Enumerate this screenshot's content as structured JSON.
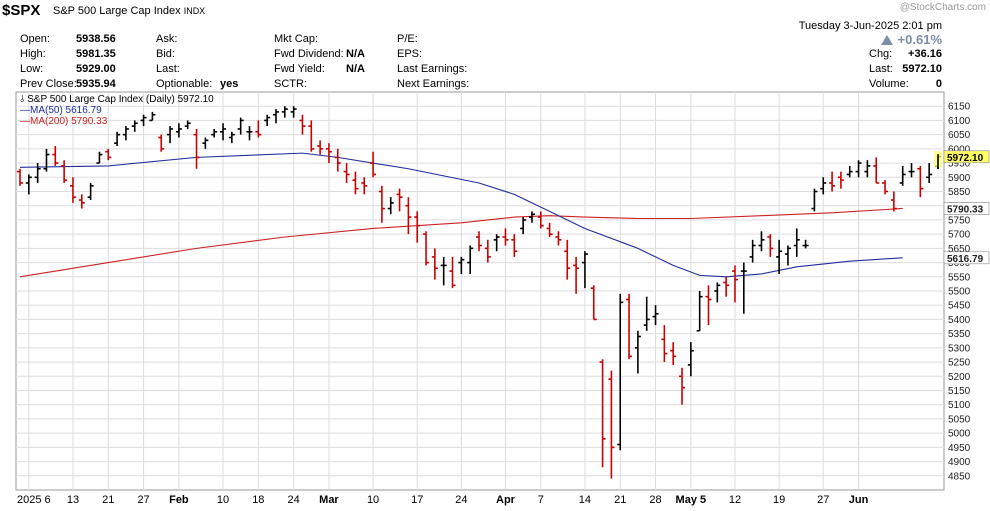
{
  "header": {
    "symbol": "$SPX",
    "name": "S&P 500 Large Cap Index",
    "exchange": "INDX",
    "watermark": "@StockCharts.com",
    "datetime": "Tuesday  3-Jun-2025  2:01 pm",
    "pct_change": "+0.61%"
  },
  "quote": {
    "open_label": "Open:",
    "open": "5938.56",
    "high_label": "High:",
    "high": "5981.35",
    "low_label": "Low:",
    "low": "5929.00",
    "prev_label": "Prev Close:",
    "prev": "5935.94",
    "ask_label": "Ask:",
    "bid_label": "Bid:",
    "last_label2": "Last:",
    "optionable_label": "Optionable:",
    "optionable": "yes",
    "mktcap_label": "Mkt Cap:",
    "fwddiv_label": "Fwd Dividend:",
    "fwddiv": "N/A",
    "fwdyield_label": "Fwd Yield:",
    "fwdyield": "N/A",
    "sctr_label": "SCTR:",
    "pe_label": "P/E:",
    "eps_label": "EPS:",
    "lastearn_label": "Last Earnings:",
    "nextearn_label": "Next Earnings:",
    "chg_label": "Chg:",
    "chg": "+36.16",
    "last_label": "Last:",
    "last": "5972.10",
    "volume_label": "Volume:",
    "volume": "0"
  },
  "legend": {
    "main": "S&P 500 Large Cap Index (Daily) 5972.10",
    "ma50": "MA(50) 5616.79",
    "ma200": "MA(200) 5790.33"
  },
  "colors": {
    "up": "#000000",
    "down": "#cc0000",
    "ma50": "#1f2f9e",
    "ma200": "#cc2222",
    "grid": "#dddddd",
    "last_tag": "#ffff66"
  },
  "chart_data": {
    "type": "ohlc",
    "title": "S&P 500 Large Cap Index (Daily)",
    "ylim": [
      4800,
      6200
    ],
    "y_ticks": [
      4850,
      4900,
      4950,
      5000,
      5050,
      5100,
      5150,
      5200,
      5250,
      5300,
      5350,
      5400,
      5450,
      5500,
      5550,
      5600,
      5650,
      5700,
      5750,
      5800,
      5850,
      5900,
      5950,
      6000,
      6050,
      6100,
      6150
    ],
    "x_ticks": [
      {
        "i": 1,
        "label": "2025 6",
        "bold": false
      },
      {
        "i": 6,
        "label": "13",
        "bold": false
      },
      {
        "i": 10,
        "label": "21",
        "bold": false
      },
      {
        "i": 14,
        "label": "27",
        "bold": false
      },
      {
        "i": 18,
        "label": "Feb",
        "bold": true
      },
      {
        "i": 23,
        "label": "10",
        "bold": false
      },
      {
        "i": 27,
        "label": "18",
        "bold": false
      },
      {
        "i": 31,
        "label": "24",
        "bold": false
      },
      {
        "i": 35,
        "label": "Mar",
        "bold": true
      },
      {
        "i": 40,
        "label": "10",
        "bold": false
      },
      {
        "i": 45,
        "label": "17",
        "bold": false
      },
      {
        "i": 50,
        "label": "24",
        "bold": false
      },
      {
        "i": 55,
        "label": "Apr",
        "bold": true
      },
      {
        "i": 59,
        "label": "7",
        "bold": false
      },
      {
        "i": 64,
        "label": "14",
        "bold": false
      },
      {
        "i": 68,
        "label": "21",
        "bold": false
      },
      {
        "i": 72,
        "label": "28",
        "bold": false
      },
      {
        "i": 76,
        "label": "May 5",
        "bold": true
      },
      {
        "i": 81,
        "label": "12",
        "bold": false
      },
      {
        "i": 86,
        "label": "19",
        "bold": false
      },
      {
        "i": 91,
        "label": "27",
        "bold": false
      },
      {
        "i": 95,
        "label": "Jun",
        "bold": true
      }
    ],
    "ohlc": [
      [
        5920,
        5930,
        5870,
        5880
      ],
      [
        5880,
        5910,
        5840,
        5900
      ],
      [
        5900,
        5950,
        5880,
        5930
      ],
      [
        5930,
        6000,
        5920,
        5980
      ],
      [
        5980,
        6010,
        5940,
        5950
      ],
      [
        5940,
        5960,
        5880,
        5890
      ],
      [
        5870,
        5900,
        5810,
        5830
      ],
      [
        5820,
        5840,
        5790,
        5810
      ],
      [
        5830,
        5880,
        5820,
        5870
      ],
      [
        5950,
        5990,
        5950,
        5980
      ],
      [
        5990,
        6000,
        5960,
        5970
      ],
      [
        6020,
        6060,
        6010,
        6050
      ],
      [
        6050,
        6080,
        6030,
        6070
      ],
      [
        6080,
        6100,
        6060,
        6090
      ],
      [
        6100,
        6120,
        6080,
        6110
      ],
      [
        6100,
        6130,
        6100,
        6120
      ],
      [
        6040,
        6050,
        5990,
        6000
      ],
      [
        6050,
        6080,
        6020,
        6070
      ],
      [
        6060,
        6090,
        6040,
        6070
      ],
      [
        6080,
        6100,
        6070,
        6090
      ],
      [
        6050,
        6070,
        5930,
        5970
      ],
      [
        6020,
        6040,
        6000,
        6030
      ],
      [
        6050,
        6070,
        6040,
        6060
      ],
      [
        6060,
        6090,
        6030,
        6070
      ],
      [
        6040,
        6060,
        6020,
        6050
      ],
      [
        6070,
        6110,
        6050,
        6100
      ],
      [
        6060,
        6080,
        6030,
        6060
      ],
      [
        6060,
        6100,
        6040,
        6050
      ],
      [
        6100,
        6120,
        6080,
        6110
      ],
      [
        6120,
        6140,
        6090,
        6130
      ],
      [
        6130,
        6150,
        6110,
        6140
      ],
      [
        6130,
        6150,
        6110,
        6140
      ],
      [
        6100,
        6120,
        6050,
        6080
      ],
      [
        6080,
        6100,
        5990,
        6000
      ],
      [
        6010,
        6030,
        5980,
        6000
      ],
      [
        6000,
        6020,
        5950,
        5990
      ],
      [
        5970,
        6000,
        5920,
        5950
      ],
      [
        5920,
        5950,
        5880,
        5910
      ],
      [
        5890,
        5920,
        5840,
        5860
      ],
      [
        5880,
        5900,
        5840,
        5870
      ],
      [
        5950,
        5990,
        5900,
        5910
      ],
      [
        5850,
        5870,
        5740,
        5790
      ],
      [
        5790,
        5830,
        5770,
        5810
      ],
      [
        5840,
        5860,
        5780,
        5830
      ],
      [
        5800,
        5830,
        5700,
        5760
      ],
      [
        5760,
        5780,
        5670,
        5730
      ],
      [
        5700,
        5710,
        5590,
        5600
      ],
      [
        5620,
        5650,
        5540,
        5580
      ],
      [
        5590,
        5620,
        5520,
        5590
      ],
      [
        5570,
        5620,
        5510,
        5520
      ],
      [
        5600,
        5620,
        5560,
        5610
      ],
      [
        5600,
        5660,
        5560,
        5650
      ],
      [
        5690,
        5710,
        5640,
        5660
      ],
      [
        5650,
        5680,
        5600,
        5620
      ],
      [
        5680,
        5700,
        5640,
        5690
      ],
      [
        5690,
        5720,
        5660,
        5680
      ],
      [
        5680,
        5700,
        5620,
        5640
      ],
      [
        5720,
        5760,
        5700,
        5750
      ],
      [
        5760,
        5780,
        5740,
        5770
      ],
      [
        5760,
        5780,
        5720,
        5730
      ],
      [
        5720,
        5740,
        5690,
        5700
      ],
      [
        5690,
        5710,
        5660,
        5680
      ],
      [
        5640,
        5680,
        5540,
        5580
      ],
      [
        5590,
        5620,
        5490,
        5580
      ],
      [
        5600,
        5640,
        5510,
        5630
      ],
      [
        5510,
        5520,
        5400,
        5400
      ],
      [
        5250,
        5260,
        4880,
        4980
      ],
      [
        5190,
        5220,
        4840,
        4950
      ],
      [
        4960,
        5490,
        4940,
        5460
      ],
      [
        5470,
        5490,
        5260,
        5270
      ],
      [
        5300,
        5360,
        5210,
        5340
      ],
      [
        5380,
        5480,
        5360,
        5400
      ],
      [
        5410,
        5450,
        5380,
        5420
      ],
      [
        5330,
        5380,
        5250,
        5280
      ],
      [
        5290,
        5320,
        5240,
        5270
      ],
      [
        5200,
        5230,
        5100,
        5160
      ],
      [
        5240,
        5320,
        5200,
        5290
      ],
      [
        5360,
        5500,
        5360,
        5480
      ],
      [
        5480,
        5520,
        5380,
        5470
      ],
      [
        5500,
        5530,
        5460,
        5520
      ],
      [
        5530,
        5550,
        5480,
        5520
      ],
      [
        5570,
        5590,
        5460,
        5540
      ],
      [
        5570,
        5600,
        5420,
        5570
      ],
      [
        5620,
        5680,
        5600,
        5660
      ],
      [
        5660,
        5710,
        5640,
        5680
      ],
      [
        5690,
        5700,
        5620,
        5650
      ],
      [
        5620,
        5680,
        5560,
        5640
      ],
      [
        5630,
        5660,
        5590,
        5650
      ],
      [
        5660,
        5720,
        5620,
        5680
      ],
      [
        5660,
        5680,
        5650,
        5660
      ],
      [
        5790,
        5860,
        5780,
        5850
      ],
      [
        5860,
        5900,
        5840,
        5880
      ],
      [
        5880,
        5920,
        5850,
        5870
      ],
      [
        5900,
        5920,
        5860,
        5890
      ],
      [
        5910,
        5940,
        5900,
        5920
      ],
      [
        5920,
        5960,
        5900,
        5950
      ],
      [
        5920,
        5960,
        5900,
        5940
      ],
      [
        5940,
        5970,
        5880,
        5880
      ],
      [
        5880,
        5890,
        5840,
        5850
      ],
      [
        5820,
        5850,
        5780,
        5790
      ],
      [
        5880,
        5940,
        5870,
        5910
      ],
      [
        5920,
        5950,
        5900,
        5920
      ],
      [
        5930,
        5940,
        5830,
        5860
      ],
      [
        5900,
        5950,
        5880,
        5910
      ],
      [
        5938.56,
        5981.35,
        5929,
        5972.1
      ]
    ],
    "ma50": [
      [
        0,
        5935
      ],
      [
        10,
        5940
      ],
      [
        20,
        5970
      ],
      [
        32,
        5985
      ],
      [
        36,
        5970
      ],
      [
        44,
        5930
      ],
      [
        52,
        5880
      ],
      [
        56,
        5840
      ],
      [
        60,
        5780
      ],
      [
        64,
        5720
      ],
      [
        70,
        5650
      ],
      [
        74,
        5590
      ],
      [
        77,
        5555
      ],
      [
        80,
        5550
      ],
      [
        84,
        5560
      ],
      [
        88,
        5585
      ],
      [
        94,
        5605
      ],
      [
        100,
        5616.79
      ]
    ],
    "ma200": [
      [
        0,
        5550
      ],
      [
        10,
        5600
      ],
      [
        20,
        5650
      ],
      [
        30,
        5690
      ],
      [
        40,
        5720
      ],
      [
        50,
        5740
      ],
      [
        56,
        5760
      ],
      [
        60,
        5765
      ],
      [
        64,
        5760
      ],
      [
        70,
        5755
      ],
      [
        76,
        5755
      ],
      [
        84,
        5765
      ],
      [
        92,
        5775
      ],
      [
        100,
        5790.33
      ]
    ],
    "last_value": "5972.10",
    "ma50_value": "5616.79",
    "ma200_value": "5790.33"
  }
}
